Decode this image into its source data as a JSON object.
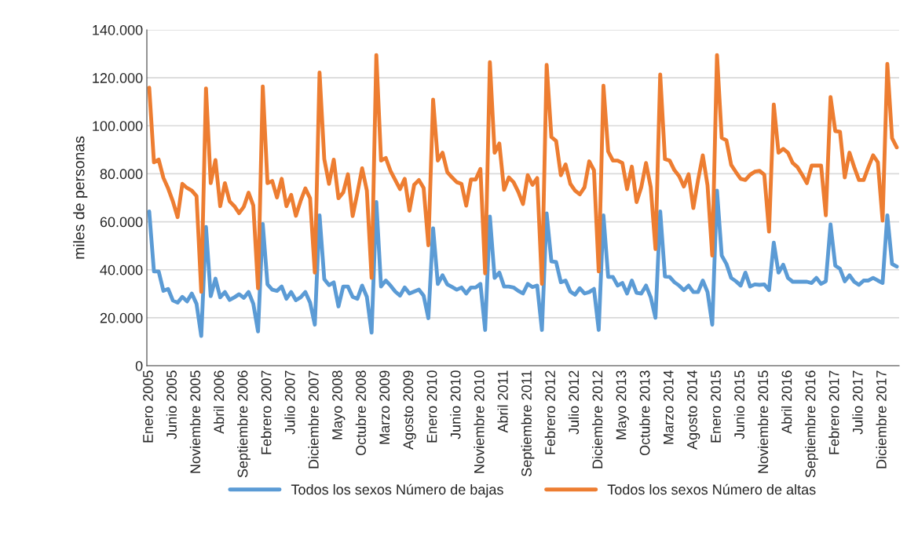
{
  "chart_data": {
    "type": "line",
    "ylabel": "miles de personas",
    "categories": [
      "Enero 2005",
      null,
      null,
      null,
      null,
      "Junio 2005",
      null,
      null,
      null,
      null,
      "Noviembre 2005",
      null,
      null,
      null,
      null,
      "Abril 2006",
      null,
      null,
      null,
      null,
      "Septiembre 2006",
      null,
      null,
      null,
      null,
      "Febrero 2007",
      null,
      null,
      null,
      null,
      "Julio 2007",
      null,
      null,
      null,
      null,
      "Diciembre 2007",
      null,
      null,
      null,
      null,
      "Mayo 2008",
      null,
      null,
      null,
      null,
      "Octubre 2008",
      null,
      null,
      null,
      null,
      "Marzo 2009",
      null,
      null,
      null,
      null,
      "Agosto 2009",
      null,
      null,
      null,
      null,
      "Enero 2010",
      null,
      null,
      null,
      null,
      "Junio 2010",
      null,
      null,
      null,
      null,
      "Noviembre 2010",
      null,
      null,
      null,
      null,
      "Abril 2011",
      null,
      null,
      null,
      null,
      "Septiembre 2011",
      null,
      null,
      null,
      null,
      "Febrero 2012",
      null,
      null,
      null,
      null,
      "Julio 2012",
      null,
      null,
      null,
      null,
      "Diciembre 2012",
      null,
      null,
      null,
      null,
      "Mayo 2013",
      null,
      null,
      null,
      null,
      "Octubre 2013",
      null,
      null,
      null,
      null,
      "Marzo 2014",
      null,
      null,
      null,
      null,
      "Agosto 2014",
      null,
      null,
      null,
      null,
      "Enero 2015",
      null,
      null,
      null,
      null,
      "Junio 2015",
      null,
      null,
      null,
      null,
      "Noviembre 2015",
      null,
      null,
      null,
      null,
      "Abril 2016",
      null,
      null,
      null,
      null,
      "Septiembre 2016",
      null,
      null,
      null,
      null,
      "Febrero 2017",
      null,
      null,
      null,
      null,
      "Julio 2017",
      null,
      null,
      null,
      null,
      "Diciembre 2017",
      null,
      null,
      null
    ],
    "series": [
      {
        "name": "Todos los sexos Número de bajas",
        "color": "#5b9bd5",
        "values": [
          64300,
          39300,
          39300,
          31200,
          32000,
          27200,
          26300,
          28700,
          26800,
          30100,
          25800,
          12400,
          57800,
          29000,
          36300,
          28500,
          30700,
          27400,
          28500,
          29800,
          28300,
          30700,
          25800,
          14300,
          59100,
          33900,
          31700,
          31200,
          33000,
          27900,
          30700,
          27300,
          28500,
          30700,
          26300,
          17100,
          62700,
          36100,
          33600,
          34700,
          24700,
          33000,
          33000,
          28700,
          27900,
          33400,
          28700,
          13800,
          68200,
          33000,
          35500,
          33400,
          30900,
          29200,
          32600,
          30100,
          30900,
          31700,
          29200,
          19800,
          57300,
          34100,
          37700,
          33900,
          32800,
          31700,
          32600,
          30100,
          32600,
          32600,
          34100,
          14900,
          62200,
          36600,
          38800,
          33000,
          33000,
          32600,
          31200,
          30100,
          34100,
          32800,
          33400,
          14900,
          63500,
          43500,
          43200,
          34800,
          35500,
          30900,
          29600,
          32300,
          30100,
          30700,
          32000,
          14900,
          62700,
          37000,
          37000,
          33400,
          34500,
          30100,
          35500,
          30400,
          30100,
          33400,
          28500,
          20000,
          64300,
          37200,
          37000,
          34800,
          33400,
          31500,
          33400,
          30700,
          30700,
          35500,
          30700,
          17100,
          73000,
          45900,
          42400,
          36600,
          35200,
          33400,
          38800,
          33000,
          33900,
          33700,
          33900,
          31500,
          51300,
          38800,
          42100,
          36600,
          35000,
          35000,
          35000,
          35000,
          34500,
          36600,
          34100,
          35200,
          58900,
          41700,
          40400,
          35200,
          37700,
          35000,
          33700,
          35500,
          35500,
          36600,
          35500,
          34500,
          62700,
          42400,
          41300
        ]
      },
      {
        "name": "Todos los sexos Número de altas",
        "color": "#ed7d31",
        "values": [
          115900,
          84800,
          85900,
          78300,
          73900,
          68500,
          61900,
          75800,
          74100,
          73000,
          70700,
          30800,
          115600,
          76100,
          85700,
          66500,
          76100,
          68500,
          66500,
          63600,
          66300,
          72100,
          66800,
          32300,
          116400,
          76100,
          77000,
          70100,
          77900,
          66500,
          71200,
          62500,
          68700,
          73900,
          69800,
          38800,
          122200,
          86100,
          75800,
          85900,
          69800,
          72200,
          79800,
          62400,
          72000,
          82300,
          73000,
          36600,
          129500,
          85500,
          86600,
          81200,
          77400,
          73600,
          77900,
          64600,
          75400,
          77400,
          74100,
          50200,
          110900,
          85500,
          88800,
          80700,
          78500,
          76500,
          75800,
          66700,
          77600,
          77600,
          82000,
          38500,
          126500,
          88800,
          92600,
          73300,
          78500,
          76500,
          72500,
          67400,
          79400,
          75400,
          78200,
          34100,
          125400,
          95300,
          93700,
          79400,
          83900,
          75800,
          73000,
          71400,
          74400,
          85200,
          81500,
          39300,
          116700,
          89300,
          85500,
          85500,
          84500,
          73600,
          83000,
          68200,
          74400,
          84500,
          74400,
          48600,
          121400,
          86100,
          85500,
          81500,
          79000,
          74700,
          79800,
          65700,
          77400,
          87700,
          75200,
          45900,
          129500,
          95000,
          93900,
          83700,
          80700,
          77900,
          77400,
          79600,
          80900,
          81200,
          79600,
          55900,
          108900,
          88800,
          90400,
          88800,
          84500,
          82800,
          79600,
          76100,
          83400,
          83400,
          83400,
          62700,
          112000,
          97800,
          97500,
          78500,
          88800,
          82800,
          77400,
          77400,
          82800,
          87700,
          84800,
          60500,
          125800,
          94800,
          91000
        ]
      }
    ],
    "ylim": [
      0,
      140000
    ],
    "yticks": [
      0,
      {
        "value": 20000,
        "label": "20.000"
      },
      {
        "value": 40000,
        "label": "40.000"
      },
      {
        "value": 60000,
        "label": "60.000"
      },
      {
        "value": 80000,
        "label": "80.000"
      },
      {
        "value": 100000,
        "label": "100.000"
      },
      {
        "value": 120000,
        "label": "120.000"
      },
      {
        "value": 140000,
        "label": "140.000"
      }
    ],
    "grid": "y",
    "legend": "bottom",
    "marker": "none",
    "line_style": "solid"
  }
}
